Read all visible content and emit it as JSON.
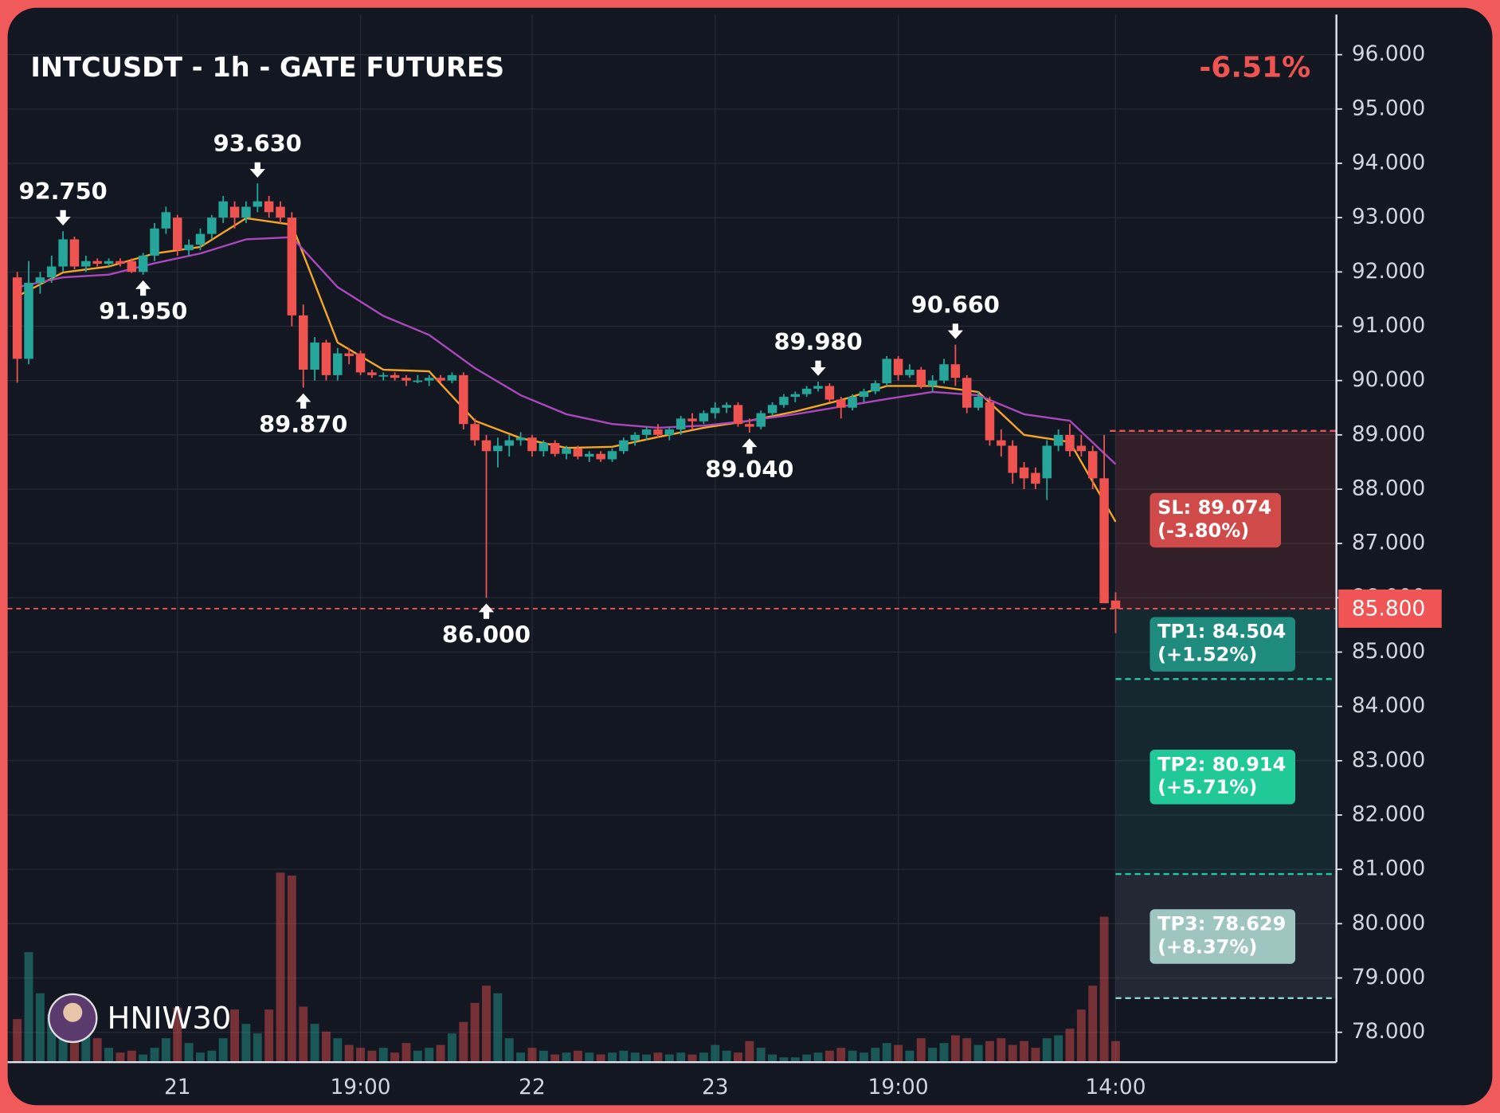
{
  "chart_data": {
    "type": "candlestick",
    "title": "INTCUSDT - 1h - GATE FUTURES",
    "change": "-6.51%",
    "watermark": "HNIW30",
    "up_color": "#26a69a",
    "down_color": "#ef5350",
    "xlim": [
      -0.84,
      115.3
    ],
    "ylim": [
      77.45,
      96.74
    ],
    "volume_ylim": [
      0,
      1095
    ],
    "grid": true,
    "xticks": [
      {
        "value": 14,
        "label": "21"
      },
      {
        "value": 30,
        "label": "19:00"
      },
      {
        "value": 45,
        "label": "22"
      },
      {
        "value": 61,
        "label": "23"
      },
      {
        "value": 77,
        "label": "19:00"
      },
      {
        "value": 96,
        "label": "14:00"
      }
    ],
    "yticks": [
      {
        "value": 78,
        "label": "78.000"
      },
      {
        "value": 79,
        "label": "79.000"
      },
      {
        "value": 80,
        "label": "80.000"
      },
      {
        "value": 81,
        "label": "81.000"
      },
      {
        "value": 82,
        "label": "82.000"
      },
      {
        "value": 83,
        "label": "83.000"
      },
      {
        "value": 84,
        "label": "84.000"
      },
      {
        "value": 85,
        "label": "85.000"
      },
      {
        "value": 86,
        "label": "86.000"
      },
      {
        "value": 87,
        "label": "87.000"
      },
      {
        "value": 88,
        "label": "88.000"
      },
      {
        "value": 89,
        "label": "89.000"
      },
      {
        "value": 90,
        "label": "90.000"
      },
      {
        "value": 91,
        "label": "91.000"
      },
      {
        "value": 92,
        "label": "92.000"
      },
      {
        "value": 93,
        "label": "93.000"
      },
      {
        "value": 94,
        "label": "94.000"
      },
      {
        "value": 95,
        "label": "95.000"
      },
      {
        "value": 96,
        "label": "96.000"
      }
    ],
    "open": [
      91.9,
      90.4,
      91.8,
      91.9,
      92.1,
      92.6,
      92.1,
      92.2,
      92.15,
      92.2,
      92.2,
      92.0,
      92.3,
      92.8,
      93.0,
      92.4,
      92.5,
      92.7,
      93.0,
      93.2,
      93.0,
      93.2,
      93.3,
      93.2,
      93.0,
      91.2,
      90.2,
      90.7,
      90.1,
      90.5,
      90.5,
      90.15,
      90.1,
      90.1,
      90.05,
      90.0,
      90.0,
      90.05,
      90.0,
      90.1,
      89.2,
      88.9,
      88.7,
      88.8,
      88.9,
      88.95,
      88.7,
      88.85,
      88.65,
      88.75,
      88.6,
      88.65,
      88.55,
      88.7,
      88.9,
      89.0,
      89.1,
      89.0,
      89.1,
      89.3,
      89.25,
      89.4,
      89.5,
      89.55,
      89.2,
      89.15,
      89.4,
      89.55,
      89.7,
      89.75,
      89.85,
      89.9,
      89.65,
      89.5,
      89.7,
      89.8,
      89.95,
      90.4,
      90.1,
      90.2,
      89.9,
      90.0,
      90.3,
      90.05,
      89.5,
      89.6,
      88.9,
      88.8,
      88.4,
      88.3,
      88.2,
      88.8,
      89.0,
      88.8,
      88.7,
      88.2,
      85.95
    ],
    "high": [
      92.0,
      92.2,
      92.0,
      92.3,
      92.75,
      92.65,
      92.3,
      92.25,
      92.25,
      92.25,
      92.25,
      92.35,
      92.9,
      93.2,
      93.05,
      92.6,
      92.8,
      93.05,
      93.4,
      93.3,
      93.3,
      93.63,
      93.4,
      93.3,
      93.1,
      91.4,
      90.8,
      90.75,
      90.6,
      90.6,
      90.55,
      90.2,
      90.15,
      90.15,
      90.1,
      90.1,
      90.1,
      90.1,
      90.15,
      90.15,
      89.3,
      89.0,
      88.95,
      89.0,
      89.05,
      89.0,
      88.9,
      88.9,
      88.8,
      88.8,
      88.7,
      88.7,
      88.75,
      88.95,
      89.05,
      89.15,
      89.2,
      89.15,
      89.35,
      89.4,
      89.45,
      89.6,
      89.6,
      89.6,
      89.3,
      89.45,
      89.6,
      89.75,
      89.8,
      89.9,
      89.98,
      89.95,
      89.7,
      89.75,
      89.85,
      90.0,
      90.45,
      90.45,
      90.3,
      90.25,
      90.1,
      90.4,
      90.66,
      90.1,
      89.8,
      89.7,
      89.1,
      88.9,
      88.5,
      88.4,
      88.9,
      89.1,
      89.2,
      89.0,
      88.8,
      89.0,
      86.1
    ],
    "low": [
      89.96,
      90.3,
      91.6,
      91.8,
      92.0,
      92.05,
      92.0,
      92.1,
      92.1,
      92.1,
      91.98,
      91.95,
      92.2,
      92.7,
      92.3,
      92.3,
      92.4,
      92.6,
      92.9,
      92.8,
      92.9,
      93.1,
      93.0,
      92.9,
      91.0,
      89.87,
      90.0,
      90.0,
      90.0,
      90.3,
      90.1,
      90.05,
      90.0,
      90.0,
      89.9,
      89.95,
      89.9,
      89.95,
      89.95,
      89.1,
      88.8,
      86.0,
      88.4,
      88.6,
      88.8,
      88.6,
      88.6,
      88.6,
      88.55,
      88.55,
      88.5,
      88.5,
      88.5,
      88.65,
      88.8,
      88.9,
      88.95,
      88.9,
      89.0,
      89.1,
      89.2,
      89.3,
      89.4,
      89.15,
      89.04,
      89.1,
      89.35,
      89.5,
      89.6,
      89.7,
      89.8,
      89.6,
      89.3,
      89.45,
      89.6,
      89.75,
      89.9,
      90.0,
      90.05,
      89.85,
      89.8,
      89.95,
      89.9,
      89.4,
      89.45,
      88.8,
      88.6,
      88.1,
      88.0,
      88.0,
      87.8,
      88.7,
      88.6,
      88.6,
      88.0,
      85.9,
      85.35
    ],
    "close": [
      90.4,
      91.8,
      91.9,
      92.1,
      92.6,
      92.1,
      92.2,
      92.15,
      92.2,
      92.15,
      92.0,
      92.3,
      92.8,
      93.1,
      92.4,
      92.5,
      92.7,
      93.0,
      93.3,
      93.0,
      93.2,
      93.3,
      93.1,
      93.0,
      91.2,
      90.2,
      90.7,
      90.1,
      90.5,
      90.45,
      90.15,
      90.1,
      90.1,
      90.05,
      90.0,
      90.0,
      90.05,
      90.0,
      90.1,
      89.2,
      88.9,
      88.7,
      88.8,
      88.9,
      88.95,
      88.7,
      88.85,
      88.65,
      88.75,
      88.6,
      88.65,
      88.55,
      88.7,
      88.9,
      89.0,
      89.1,
      89.0,
      89.1,
      89.3,
      89.25,
      89.4,
      89.5,
      89.55,
      89.2,
      89.15,
      89.4,
      89.55,
      89.7,
      89.75,
      89.85,
      89.9,
      89.65,
      89.5,
      89.7,
      89.8,
      89.95,
      90.4,
      90.1,
      90.2,
      89.9,
      90.0,
      90.3,
      90.05,
      89.5,
      89.7,
      88.9,
      88.8,
      88.3,
      88.2,
      88.1,
      88.8,
      89.0,
      88.7,
      88.7,
      88.2,
      85.9,
      85.8
    ],
    "volume": [
      45,
      115,
      72,
      50,
      35,
      60,
      40,
      25,
      15,
      10,
      12,
      8,
      15,
      25,
      57,
      20,
      10,
      12,
      25,
      55,
      40,
      30,
      55,
      198,
      195,
      58,
      40,
      32,
      25,
      18,
      15,
      12,
      15,
      10,
      20,
      12,
      15,
      18,
      30,
      42,
      62,
      80,
      72,
      25,
      10,
      15,
      12,
      8,
      10,
      12,
      10,
      8,
      10,
      12,
      10,
      8,
      10,
      8,
      10,
      8,
      10,
      18,
      12,
      10,
      22,
      15,
      8,
      5,
      5,
      8,
      10,
      12,
      15,
      12,
      10,
      15,
      20,
      18,
      12,
      25,
      15,
      20,
      28,
      25,
      18,
      22,
      25,
      18,
      22,
      15,
      25,
      28,
      35,
      55,
      80,
      152,
      22
    ],
    "lines": [
      {
        "color": "#f5a623",
        "x": [
          0,
          4,
          8,
          12,
          16,
          20,
          24,
          28,
          32,
          36,
          40,
          44,
          48,
          52,
          56,
          60,
          64,
          68,
          72,
          76,
          80,
          84,
          88,
          92,
          96
        ],
        "values": [
          91.55,
          91.99,
          92.1,
          92.34,
          92.46,
          92.99,
          92.87,
          90.7,
          90.2,
          90.17,
          89.26,
          88.94,
          88.76,
          88.78,
          88.96,
          89.13,
          89.26,
          89.43,
          89.64,
          89.9,
          89.9,
          89.79,
          89.0,
          88.87,
          87.4
        ]
      },
      {
        "color": "#ab47bc",
        "x": [
          0,
          4,
          8,
          12,
          16,
          20,
          24,
          28,
          32,
          36,
          40,
          44,
          48,
          52,
          56,
          60,
          64,
          68,
          72,
          76,
          80,
          84,
          88,
          92,
          96
        ],
        "values": [
          91.72,
          91.9,
          91.95,
          92.16,
          92.34,
          92.6,
          92.64,
          91.72,
          91.19,
          90.84,
          90.23,
          89.73,
          89.38,
          89.2,
          89.13,
          89.17,
          89.26,
          89.38,
          89.52,
          89.66,
          89.79,
          89.73,
          89.38,
          89.26,
          88.46
        ]
      }
    ],
    "annotations": [
      {
        "x": 4,
        "value": 92.75,
        "label": "92.750",
        "dir": "down"
      },
      {
        "x": 11,
        "value": 91.95,
        "label": "91.950",
        "dir": "up"
      },
      {
        "x": 21,
        "value": 93.63,
        "label": "93.630",
        "dir": "down"
      },
      {
        "x": 25,
        "value": 89.87,
        "label": "89.870",
        "dir": "up"
      },
      {
        "x": 41,
        "value": 86.0,
        "label": "86.000",
        "dir": "up"
      },
      {
        "x": 64,
        "value": 89.04,
        "label": "89.040",
        "dir": "up"
      },
      {
        "x": 70,
        "value": 89.98,
        "label": "89.980",
        "dir": "down"
      },
      {
        "x": 82,
        "value": 90.66,
        "label": "90.660",
        "dir": "down"
      }
    ],
    "last_price": {
      "value": 85.8,
      "label": "85.800",
      "color": "#f05454"
    },
    "levels": [
      {
        "label": "SL: 89.074",
        "note": "(-3.80%)",
        "value": 89.074,
        "color": "#d04a4a",
        "line_color": "#e05555",
        "zone": "rgba(239,83,80,0.14)"
      },
      {
        "label": "TP1: 84.504",
        "note": "(+1.52%)",
        "value": 84.504,
        "color": "#1f8a7e",
        "line_color": "#26c6a6",
        "zone": "rgba(38,166,154,0.12)"
      },
      {
        "label": "TP2: 80.914",
        "note": "(+5.71%)",
        "value": 80.914,
        "color": "#20c997",
        "line_color": "#26c6a6",
        "zone": "rgba(38,166,154,0.12)"
      },
      {
        "label": "TP3: 78.629",
        "note": "(+8.37%)",
        "value": 78.629,
        "color": "#9fc5c1",
        "line_color": "#8fd4cc",
        "zone": "rgba(140,150,165,0.14)"
      }
    ]
  }
}
